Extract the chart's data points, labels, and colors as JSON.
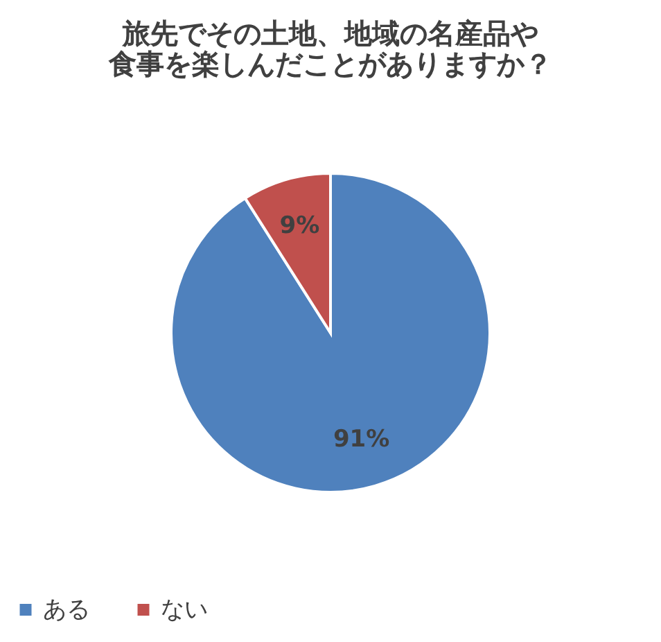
{
  "chart_data": {
    "type": "pie",
    "title": [
      "旅先でその土地、地域の名産品や",
      "食事を楽しんだことがありますか？"
    ],
    "categories": [
      "ある",
      "ない"
    ],
    "values": [
      91,
      9
    ],
    "colors": [
      "#4f81bd",
      "#c0504d"
    ],
    "value_labels": [
      "91%",
      "9%"
    ],
    "legend": "bottom"
  }
}
